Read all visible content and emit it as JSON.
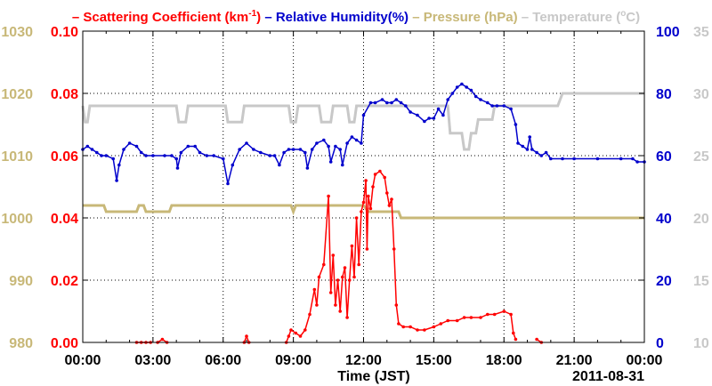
{
  "chart_data": {
    "type": "line",
    "legend": {
      "placement": "top",
      "items": [
        {
          "prefix": "– ",
          "text": "Scattering Coefficient (km",
          "sup": "-1",
          "suffix": ")",
          "color": "#ff0000"
        },
        {
          "prefix": "– ",
          "text": "Relative Humidity(%)",
          "color": "#0000cc"
        },
        {
          "prefix": "– ",
          "text": "Pressure (hPa)",
          "color": "#c8b878"
        },
        {
          "prefix": "– ",
          "text": "Temperature (",
          "sup": "o",
          "suffix": "C)",
          "color": "#c8c8c8"
        }
      ]
    },
    "xlabel": "Time (JST)",
    "date_label": "2011-08-31",
    "x_unit": "hours",
    "xlim": [
      0,
      24
    ],
    "x_ticks": [
      "00:00",
      "03:00",
      "06:00",
      "09:00",
      "12:00",
      "15:00",
      "18:00",
      "21:00",
      "00:00"
    ],
    "grid": true,
    "axes": {
      "scattering": {
        "side": "left-inner",
        "ylim": [
          0,
          0.1
        ],
        "ticks": [
          "0.00",
          "0.02",
          "0.04",
          "0.06",
          "0.08",
          "0.10"
        ],
        "color": "#ff0000"
      },
      "pressure": {
        "side": "left-outer",
        "ylim": [
          980,
          1030
        ],
        "ticks": [
          "980",
          "990",
          "1000",
          "1010",
          "1020",
          "1030"
        ],
        "color": "#c8b878"
      },
      "humidity": {
        "side": "right-inner",
        "ylim": [
          0,
          100
        ],
        "ticks": [
          "0",
          "20",
          "40",
          "60",
          "80",
          "100"
        ],
        "color": "#0000cc"
      },
      "temperature": {
        "side": "right-outer",
        "ylim": [
          10,
          35
        ],
        "ticks": [
          "10",
          "15",
          "20",
          "25",
          "30",
          "35"
        ],
        "color": "#c8c8c8"
      }
    },
    "series": [
      {
        "name": "Scattering Coefficient",
        "axis": "scattering",
        "color": "#ff0000",
        "markers": true,
        "segments": [
          [
            [
              2.3,
              0
            ],
            [
              2.5,
              0
            ],
            [
              2.7,
              0
            ],
            [
              2.9,
              0
            ]
          ],
          [
            [
              3.2,
              0
            ],
            [
              3.4,
              0.001
            ],
            [
              3.6,
              0
            ]
          ],
          [
            [
              6.9,
              0
            ],
            [
              7.0,
              0.002
            ],
            [
              7.1,
              0
            ]
          ],
          [
            [
              8.7,
              0
            ],
            [
              8.8,
              0.002
            ],
            [
              8.9,
              0.004
            ],
            [
              9.1,
              0.003
            ],
            [
              9.3,
              0.002
            ],
            [
              9.5,
              0.004
            ],
            [
              9.7,
              0.009
            ],
            [
              9.9,
              0.017
            ],
            [
              10.0,
              0.012
            ],
            [
              10.1,
              0.021
            ],
            [
              10.3,
              0.025
            ],
            [
              10.5,
              0.047
            ],
            [
              10.6,
              0.016
            ],
            [
              10.7,
              0.028
            ],
            [
              10.8,
              0.012
            ],
            [
              10.9,
              0.02
            ],
            [
              11.0,
              0.01
            ],
            [
              11.1,
              0.021
            ],
            [
              11.2,
              0.024
            ],
            [
              11.3,
              0.008
            ],
            [
              11.4,
              0.02
            ],
            [
              11.5,
              0.031
            ],
            [
              11.6,
              0.021
            ],
            [
              11.7,
              0.04
            ],
            [
              11.8,
              0.025
            ],
            [
              11.9,
              0.042
            ],
            [
              12.0,
              0.045
            ],
            [
              12.1,
              0.052
            ],
            [
              12.15,
              0.03
            ],
            [
              12.2,
              0.047
            ],
            [
              12.3,
              0.043
            ],
            [
              12.4,
              0.05
            ],
            [
              12.5,
              0.054
            ],
            [
              12.7,
              0.055
            ],
            [
              12.9,
              0.053
            ],
            [
              13.0,
              0.048
            ],
            [
              13.1,
              0.044
            ],
            [
              13.2,
              0.046
            ],
            [
              13.3,
              0.03
            ],
            [
              13.4,
              0.012
            ],
            [
              13.5,
              0.006
            ],
            [
              13.7,
              0.005
            ],
            [
              14.0,
              0.005
            ],
            [
              14.3,
              0.004
            ],
            [
              14.6,
              0.004
            ],
            [
              15.0,
              0.005
            ],
            [
              15.3,
              0.006
            ],
            [
              15.6,
              0.007
            ],
            [
              16.0,
              0.007
            ],
            [
              16.3,
              0.008
            ],
            [
              16.6,
              0.008
            ],
            [
              17.0,
              0.008
            ],
            [
              17.3,
              0.009
            ],
            [
              17.6,
              0.009
            ],
            [
              18.0,
              0.01
            ],
            [
              18.3,
              0.009
            ],
            [
              18.4,
              0.003
            ],
            [
              18.5,
              0.001
            ]
          ],
          [
            [
              19.4,
              0.001
            ],
            [
              19.6,
              0
            ]
          ]
        ]
      },
      {
        "name": "Relative Humidity",
        "axis": "humidity",
        "color": "#0000cc",
        "markers": true,
        "segments": [
          [
            [
              0.0,
              62
            ],
            [
              0.2,
              63
            ],
            [
              0.4,
              62
            ],
            [
              0.6,
              61
            ],
            [
              0.8,
              60
            ],
            [
              1.0,
              60
            ],
            [
              1.3,
              59
            ],
            [
              1.45,
              52
            ],
            [
              1.55,
              57
            ],
            [
              1.75,
              62
            ],
            [
              2.0,
              64
            ],
            [
              2.3,
              63
            ],
            [
              2.5,
              61
            ],
            [
              2.7,
              60
            ],
            [
              3.0,
              60
            ],
            [
              3.5,
              60
            ],
            [
              3.8,
              60
            ],
            [
              4.0,
              59
            ],
            [
              4.05,
              56
            ],
            [
              4.2,
              61
            ],
            [
              4.5,
              63
            ],
            [
              4.8,
              63
            ],
            [
              5.0,
              61
            ],
            [
              5.3,
              60
            ],
            [
              5.6,
              60
            ],
            [
              6.0,
              59
            ],
            [
              6.2,
              51
            ],
            [
              6.4,
              57
            ],
            [
              6.7,
              62
            ],
            [
              7.0,
              64
            ],
            [
              7.3,
              62
            ],
            [
              7.6,
              61
            ],
            [
              8.0,
              60
            ],
            [
              8.2,
              60
            ],
            [
              8.4,
              57
            ],
            [
              8.6,
              61
            ],
            [
              8.8,
              62
            ],
            [
              9.0,
              62
            ],
            [
              9.3,
              62
            ],
            [
              9.5,
              61
            ],
            [
              9.6,
              56
            ],
            [
              9.8,
              62
            ],
            [
              10.0,
              64
            ],
            [
              10.3,
              65
            ],
            [
              10.5,
              63
            ],
            [
              10.6,
              58
            ],
            [
              10.8,
              63
            ],
            [
              11.0,
              62
            ],
            [
              11.1,
              57
            ],
            [
              11.3,
              64
            ],
            [
              11.5,
              66
            ],
            [
              11.7,
              65
            ],
            [
              11.9,
              64
            ],
            [
              12.0,
              73
            ],
            [
              12.3,
              77
            ],
            [
              12.5,
              77
            ],
            [
              12.8,
              78
            ],
            [
              13.0,
              77
            ],
            [
              13.2,
              77
            ],
            [
              13.4,
              78
            ],
            [
              13.6,
              77
            ],
            [
              13.8,
              76
            ],
            [
              14.0,
              74
            ],
            [
              14.3,
              73
            ],
            [
              14.6,
              71
            ],
            [
              14.8,
              72
            ],
            [
              15.0,
              72
            ],
            [
              15.2,
              75
            ],
            [
              15.4,
              73
            ],
            [
              15.6,
              78
            ],
            [
              15.8,
              80
            ],
            [
              16.0,
              82
            ],
            [
              16.2,
              83
            ],
            [
              16.4,
              82
            ],
            [
              16.6,
              81
            ],
            [
              16.8,
              79
            ],
            [
              17.0,
              78
            ],
            [
              17.3,
              77
            ],
            [
              17.5,
              76
            ],
            [
              17.7,
              76
            ],
            [
              18.0,
              76
            ],
            [
              18.3,
              75
            ],
            [
              18.5,
              70
            ],
            [
              18.6,
              64
            ],
            [
              18.8,
              63
            ],
            [
              19.0,
              62
            ],
            [
              19.1,
              66
            ],
            [
              19.2,
              62
            ],
            [
              19.4,
              61
            ],
            [
              19.6,
              60
            ],
            [
              19.8,
              61
            ],
            [
              20.0,
              59
            ],
            [
              20.5,
              59
            ],
            [
              21.0,
              59
            ],
            [
              22.0,
              59
            ],
            [
              23.0,
              59
            ],
            [
              23.5,
              59
            ],
            [
              23.7,
              58
            ],
            [
              24.0,
              58
            ]
          ]
        ]
      },
      {
        "name": "Pressure",
        "axis": "pressure",
        "color": "#c8b878",
        "markers": false,
        "segments": [
          [
            [
              0.0,
              1002
            ],
            [
              0.9,
              1002
            ],
            [
              1.0,
              1001
            ],
            [
              2.3,
              1001
            ],
            [
              2.4,
              1002
            ],
            [
              2.6,
              1002
            ],
            [
              2.7,
              1001
            ],
            [
              3.7,
              1001
            ],
            [
              3.8,
              1002
            ],
            [
              8.9,
              1002
            ],
            [
              9.0,
              1001
            ],
            [
              9.1,
              1002
            ],
            [
              10.1,
              1002
            ],
            [
              10.2,
              1002
            ],
            [
              12.0,
              1002
            ],
            [
              12.2,
              1001
            ],
            [
              13.5,
              1001
            ],
            [
              13.6,
              1000
            ],
            [
              24.0,
              1000
            ]
          ]
        ]
      },
      {
        "name": "Temperature",
        "axis": "temperature",
        "color": "#c8c8c8",
        "markers": false,
        "segments": [
          [
            [
              0.0,
              29
            ],
            [
              0.1,
              27.7
            ],
            [
              0.2,
              27.7
            ],
            [
              0.3,
              29
            ],
            [
              4.0,
              29
            ],
            [
              4.1,
              27.7
            ],
            [
              4.4,
              27.7
            ],
            [
              4.5,
              29
            ],
            [
              6.1,
              29
            ],
            [
              6.2,
              27.7
            ],
            [
              6.8,
              27.7
            ],
            [
              6.9,
              29
            ],
            [
              8.8,
              29
            ],
            [
              8.9,
              27.7
            ],
            [
              9.1,
              27.7
            ],
            [
              9.2,
              29
            ],
            [
              10.1,
              29
            ],
            [
              10.2,
              27.7
            ],
            [
              10.6,
              27.7
            ],
            [
              10.7,
              29
            ],
            [
              11.3,
              29
            ],
            [
              11.4,
              27.7
            ],
            [
              11.6,
              27.7
            ],
            [
              11.7,
              29
            ],
            [
              15.6,
              29
            ],
            [
              15.7,
              26.8
            ],
            [
              16.2,
              26.8
            ],
            [
              16.3,
              25.5
            ],
            [
              16.5,
              25.5
            ],
            [
              16.6,
              26.8
            ],
            [
              16.8,
              26.8
            ],
            [
              16.9,
              27.9
            ],
            [
              17.5,
              27.9
            ],
            [
              17.6,
              29
            ],
            [
              20.3,
              29
            ],
            [
              20.5,
              30
            ],
            [
              24.0,
              30
            ]
          ]
        ]
      }
    ]
  }
}
